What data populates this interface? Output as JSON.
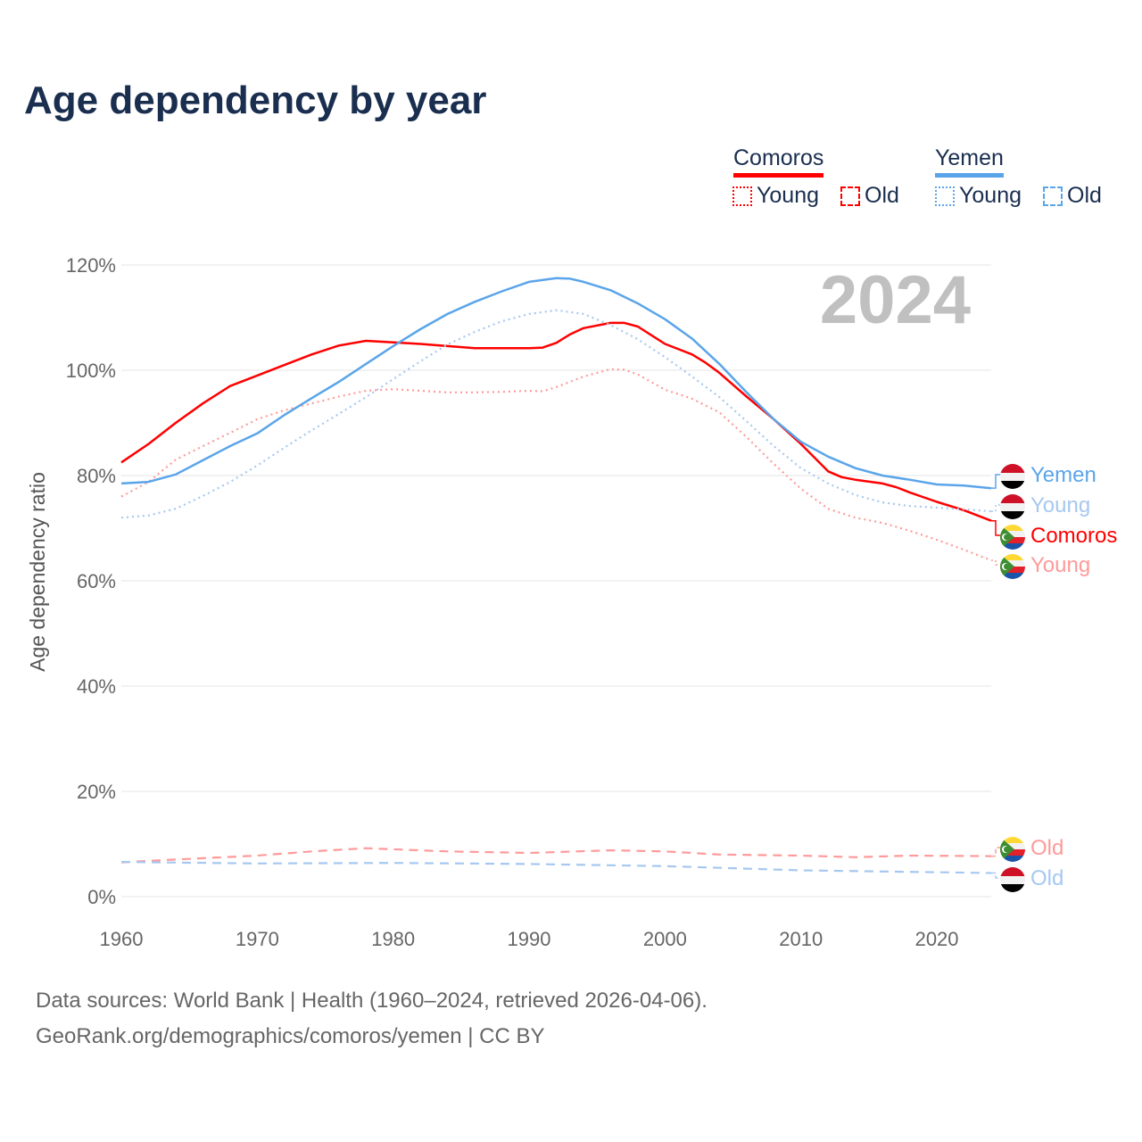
{
  "title": "Age dependency by year",
  "legend": {
    "groups": [
      {
        "name": "Comoros",
        "color": "#ff0000",
        "young": "Young",
        "old": "Old"
      },
      {
        "name": "Yemen",
        "color": "#5aa5ea",
        "young": "Young",
        "old": "Old"
      }
    ]
  },
  "footer": {
    "line1": "Data sources: World Bank | Health (1960–2024, retrieved 2026-04-06).",
    "line2": "GeoRank.org/demographics/comoros/yemen | CC BY"
  },
  "chart_data": {
    "type": "line",
    "title": "Age dependency by year",
    "xlabel": "",
    "ylabel": "Age dependency ratio",
    "year_label": "2024",
    "xlim": [
      1960,
      2024
    ],
    "ylim": [
      0,
      120
    ],
    "xticks": [
      1960,
      1970,
      1980,
      1990,
      2000,
      2010,
      2020
    ],
    "yticks": [
      0,
      20,
      40,
      60,
      80,
      100,
      120
    ],
    "ytick_labels": [
      "0%",
      "20%",
      "40%",
      "60%",
      "80%",
      "100%",
      "120%"
    ],
    "grid": true,
    "legend_position": "top-right",
    "series": [
      {
        "name": "Comoros",
        "end_label": "Comoros",
        "country": "comoros",
        "style": "solid",
        "color": "#ff0000",
        "points": [
          [
            1960,
            82.5
          ],
          [
            1962,
            86
          ],
          [
            1964,
            90
          ],
          [
            1966,
            93.7
          ],
          [
            1968,
            97
          ],
          [
            1970,
            99
          ],
          [
            1972,
            101
          ],
          [
            1974,
            103
          ],
          [
            1976,
            104.7
          ],
          [
            1978,
            105.6
          ],
          [
            1980,
            105.3
          ],
          [
            1982,
            105
          ],
          [
            1984,
            104.6
          ],
          [
            1986,
            104.2
          ],
          [
            1988,
            104.2
          ],
          [
            1990,
            104.2
          ],
          [
            1991,
            104.3
          ],
          [
            1992,
            105.2
          ],
          [
            1993,
            106.8
          ],
          [
            1994,
            108
          ],
          [
            1996,
            109
          ],
          [
            1997,
            109
          ],
          [
            1998,
            108.3
          ],
          [
            2000,
            105
          ],
          [
            2002,
            103
          ],
          [
            2003,
            101.4
          ],
          [
            2004,
            99.5
          ],
          [
            2006,
            95
          ],
          [
            2008,
            90.7
          ],
          [
            2010,
            86
          ],
          [
            2012,
            80.8
          ],
          [
            2013,
            79.7
          ],
          [
            2014,
            79.2
          ],
          [
            2016,
            78.5
          ],
          [
            2017,
            77.8
          ],
          [
            2018,
            76.8
          ],
          [
            2020,
            75
          ],
          [
            2022,
            73.4
          ],
          [
            2024,
            71.4
          ]
        ]
      },
      {
        "name": "Comoros Young",
        "end_label": "Young",
        "country": "comoros",
        "style": "dotted",
        "color": "#ff9a9a",
        "points": [
          [
            1960,
            76
          ],
          [
            1962,
            78.8
          ],
          [
            1964,
            83
          ],
          [
            1966,
            85.6
          ],
          [
            1968,
            88.1
          ],
          [
            1970,
            90.7
          ],
          [
            1972,
            92.4
          ],
          [
            1974,
            93.7
          ],
          [
            1976,
            95
          ],
          [
            1978,
            96.1
          ],
          [
            1980,
            96.4
          ],
          [
            1982,
            96.1
          ],
          [
            1984,
            95.8
          ],
          [
            1986,
            95.8
          ],
          [
            1988,
            95.9
          ],
          [
            1990,
            96.1
          ],
          [
            1991,
            96
          ],
          [
            1992,
            96.8
          ],
          [
            1994,
            98.8
          ],
          [
            1996,
            100.2
          ],
          [
            1997,
            100.1
          ],
          [
            1998,
            99.2
          ],
          [
            2000,
            96.3
          ],
          [
            2002,
            94.6
          ],
          [
            2004,
            92
          ],
          [
            2006,
            87.3
          ],
          [
            2008,
            82.2
          ],
          [
            2010,
            77.5
          ],
          [
            2012,
            73.7
          ],
          [
            2014,
            72
          ],
          [
            2016,
            71
          ],
          [
            2018,
            69.5
          ],
          [
            2020,
            67.8
          ],
          [
            2022,
            65.9
          ],
          [
            2024,
            63.9
          ]
        ]
      },
      {
        "name": "Comoros Old",
        "end_label": "Old",
        "country": "comoros",
        "style": "dashed",
        "color": "#ff9a9a",
        "points": [
          [
            1960,
            6.5
          ],
          [
            1962,
            6.8
          ],
          [
            1966,
            7.3
          ],
          [
            1970,
            7.8
          ],
          [
            1974,
            8.6
          ],
          [
            1978,
            9.2
          ],
          [
            1980,
            9.0
          ],
          [
            1984,
            8.6
          ],
          [
            1990,
            8.3
          ],
          [
            1996,
            8.8
          ],
          [
            2000,
            8.6
          ],
          [
            2004,
            8.0
          ],
          [
            2010,
            7.8
          ],
          [
            2014,
            7.5
          ],
          [
            2018,
            7.8
          ],
          [
            2024,
            7.7
          ]
        ]
      },
      {
        "name": "Yemen",
        "end_label": "Yemen",
        "country": "yemen",
        "style": "solid",
        "color": "#5aa5ea",
        "points": [
          [
            1960,
            78.5
          ],
          [
            1962,
            78.8
          ],
          [
            1964,
            80.2
          ],
          [
            1966,
            82.9
          ],
          [
            1968,
            85.6
          ],
          [
            1970,
            88
          ],
          [
            1972,
            91.5
          ],
          [
            1974,
            94.7
          ],
          [
            1976,
            97.8
          ],
          [
            1978,
            101.2
          ],
          [
            1980,
            104.6
          ],
          [
            1982,
            107.8
          ],
          [
            1984,
            110.7
          ],
          [
            1986,
            113
          ],
          [
            1988,
            115
          ],
          [
            1990,
            116.8
          ],
          [
            1992,
            117.5
          ],
          [
            1993,
            117.4
          ],
          [
            1994,
            116.8
          ],
          [
            1996,
            115.2
          ],
          [
            1998,
            112.7
          ],
          [
            2000,
            109.7
          ],
          [
            2002,
            106
          ],
          [
            2004,
            101.2
          ],
          [
            2006,
            95.8
          ],
          [
            2008,
            90.7
          ],
          [
            2010,
            86.4
          ],
          [
            2012,
            83.6
          ],
          [
            2014,
            81.4
          ],
          [
            2016,
            80
          ],
          [
            2018,
            79.2
          ],
          [
            2020,
            78.3
          ],
          [
            2022,
            78.1
          ],
          [
            2024,
            77.6
          ]
        ]
      },
      {
        "name": "Yemen Young",
        "end_label": "Young",
        "country": "yemen",
        "style": "dotted",
        "color": "#a6c8f0",
        "points": [
          [
            1960,
            72
          ],
          [
            1962,
            72.4
          ],
          [
            1964,
            73.7
          ],
          [
            1966,
            76.1
          ],
          [
            1968,
            78.8
          ],
          [
            1970,
            81.9
          ],
          [
            1972,
            85.3
          ],
          [
            1974,
            88.6
          ],
          [
            1976,
            91.7
          ],
          [
            1978,
            94.9
          ],
          [
            1980,
            98.3
          ],
          [
            1982,
            101.7
          ],
          [
            1984,
            104.9
          ],
          [
            1986,
            107.3
          ],
          [
            1988,
            109.3
          ],
          [
            1990,
            110.7
          ],
          [
            1992,
            111.4
          ],
          [
            1994,
            110.7
          ],
          [
            1996,
            108.6
          ],
          [
            1998,
            105.9
          ],
          [
            2000,
            102.5
          ],
          [
            2002,
            98.8
          ],
          [
            2004,
            94.9
          ],
          [
            2006,
            90.3
          ],
          [
            2008,
            85.6
          ],
          [
            2010,
            81.4
          ],
          [
            2012,
            78.5
          ],
          [
            2014,
            76.3
          ],
          [
            2016,
            74.9
          ],
          [
            2018,
            74.2
          ],
          [
            2020,
            73.9
          ],
          [
            2022,
            73.6
          ],
          [
            2024,
            73.2
          ]
        ]
      },
      {
        "name": "Yemen Old",
        "end_label": "Old",
        "country": "yemen",
        "style": "dashed",
        "color": "#a6c8f0",
        "points": [
          [
            1960,
            6.6
          ],
          [
            1970,
            6.3
          ],
          [
            1980,
            6.4
          ],
          [
            1990,
            6.2
          ],
          [
            2000,
            5.8
          ],
          [
            2010,
            5.0
          ],
          [
            2024,
            4.5
          ]
        ]
      }
    ]
  }
}
